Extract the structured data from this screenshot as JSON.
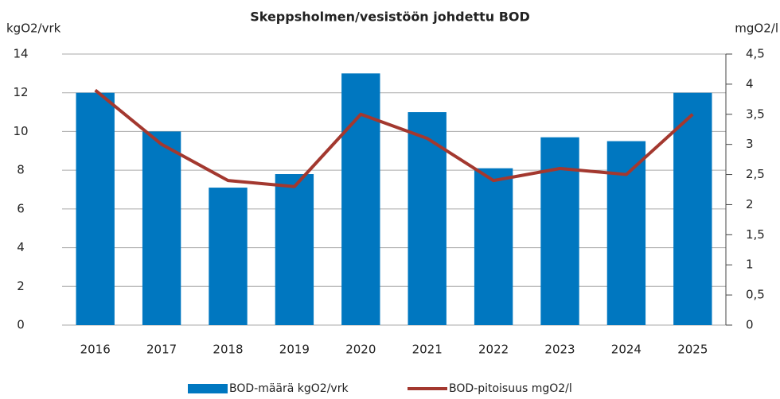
{
  "chart_data": {
    "type": "bar",
    "title": "Skeppsholmen/vesistöön johdettu BOD",
    "y_label": "kgO2/vrk",
    "y2_label": "mgO2/l",
    "categories": [
      "2016",
      "2017",
      "2018",
      "2019",
      "2020",
      "2021",
      "2022",
      "2023",
      "2024",
      "2025"
    ],
    "series": [
      {
        "name": "BOD-määrä kgO2/vrk",
        "type": "bar",
        "color": "#0077c0",
        "values": [
          12,
          10,
          7.1,
          7.8,
          13,
          11,
          8.1,
          9.7,
          9.5,
          12
        ]
      },
      {
        "name": "BOD-pitoisuus mgO2/l",
        "type": "line",
        "axis": "y2",
        "color": "#a3382f",
        "values": [
          3.9,
          3.0,
          2.4,
          2.3,
          3.5,
          3.1,
          2.4,
          2.6,
          2.5,
          3.5
        ]
      }
    ],
    "ylim": [
      0,
      14
    ],
    "yticks": [
      0,
      2,
      4,
      6,
      8,
      10,
      12,
      14
    ],
    "y2lim": [
      0,
      4.5
    ],
    "y2ticks": [
      0,
      {
        "value": 0.5,
        "label": "0,5"
      },
      1,
      {
        "value": 1.5,
        "label": "1,5"
      },
      2,
      {
        "value": 2.5,
        "label": "2,5"
      },
      3,
      {
        "value": 3.5,
        "label": "3,5"
      },
      4,
      {
        "value": 4.5,
        "label": "4,5"
      }
    ],
    "grid": true,
    "legend": "bottom"
  }
}
